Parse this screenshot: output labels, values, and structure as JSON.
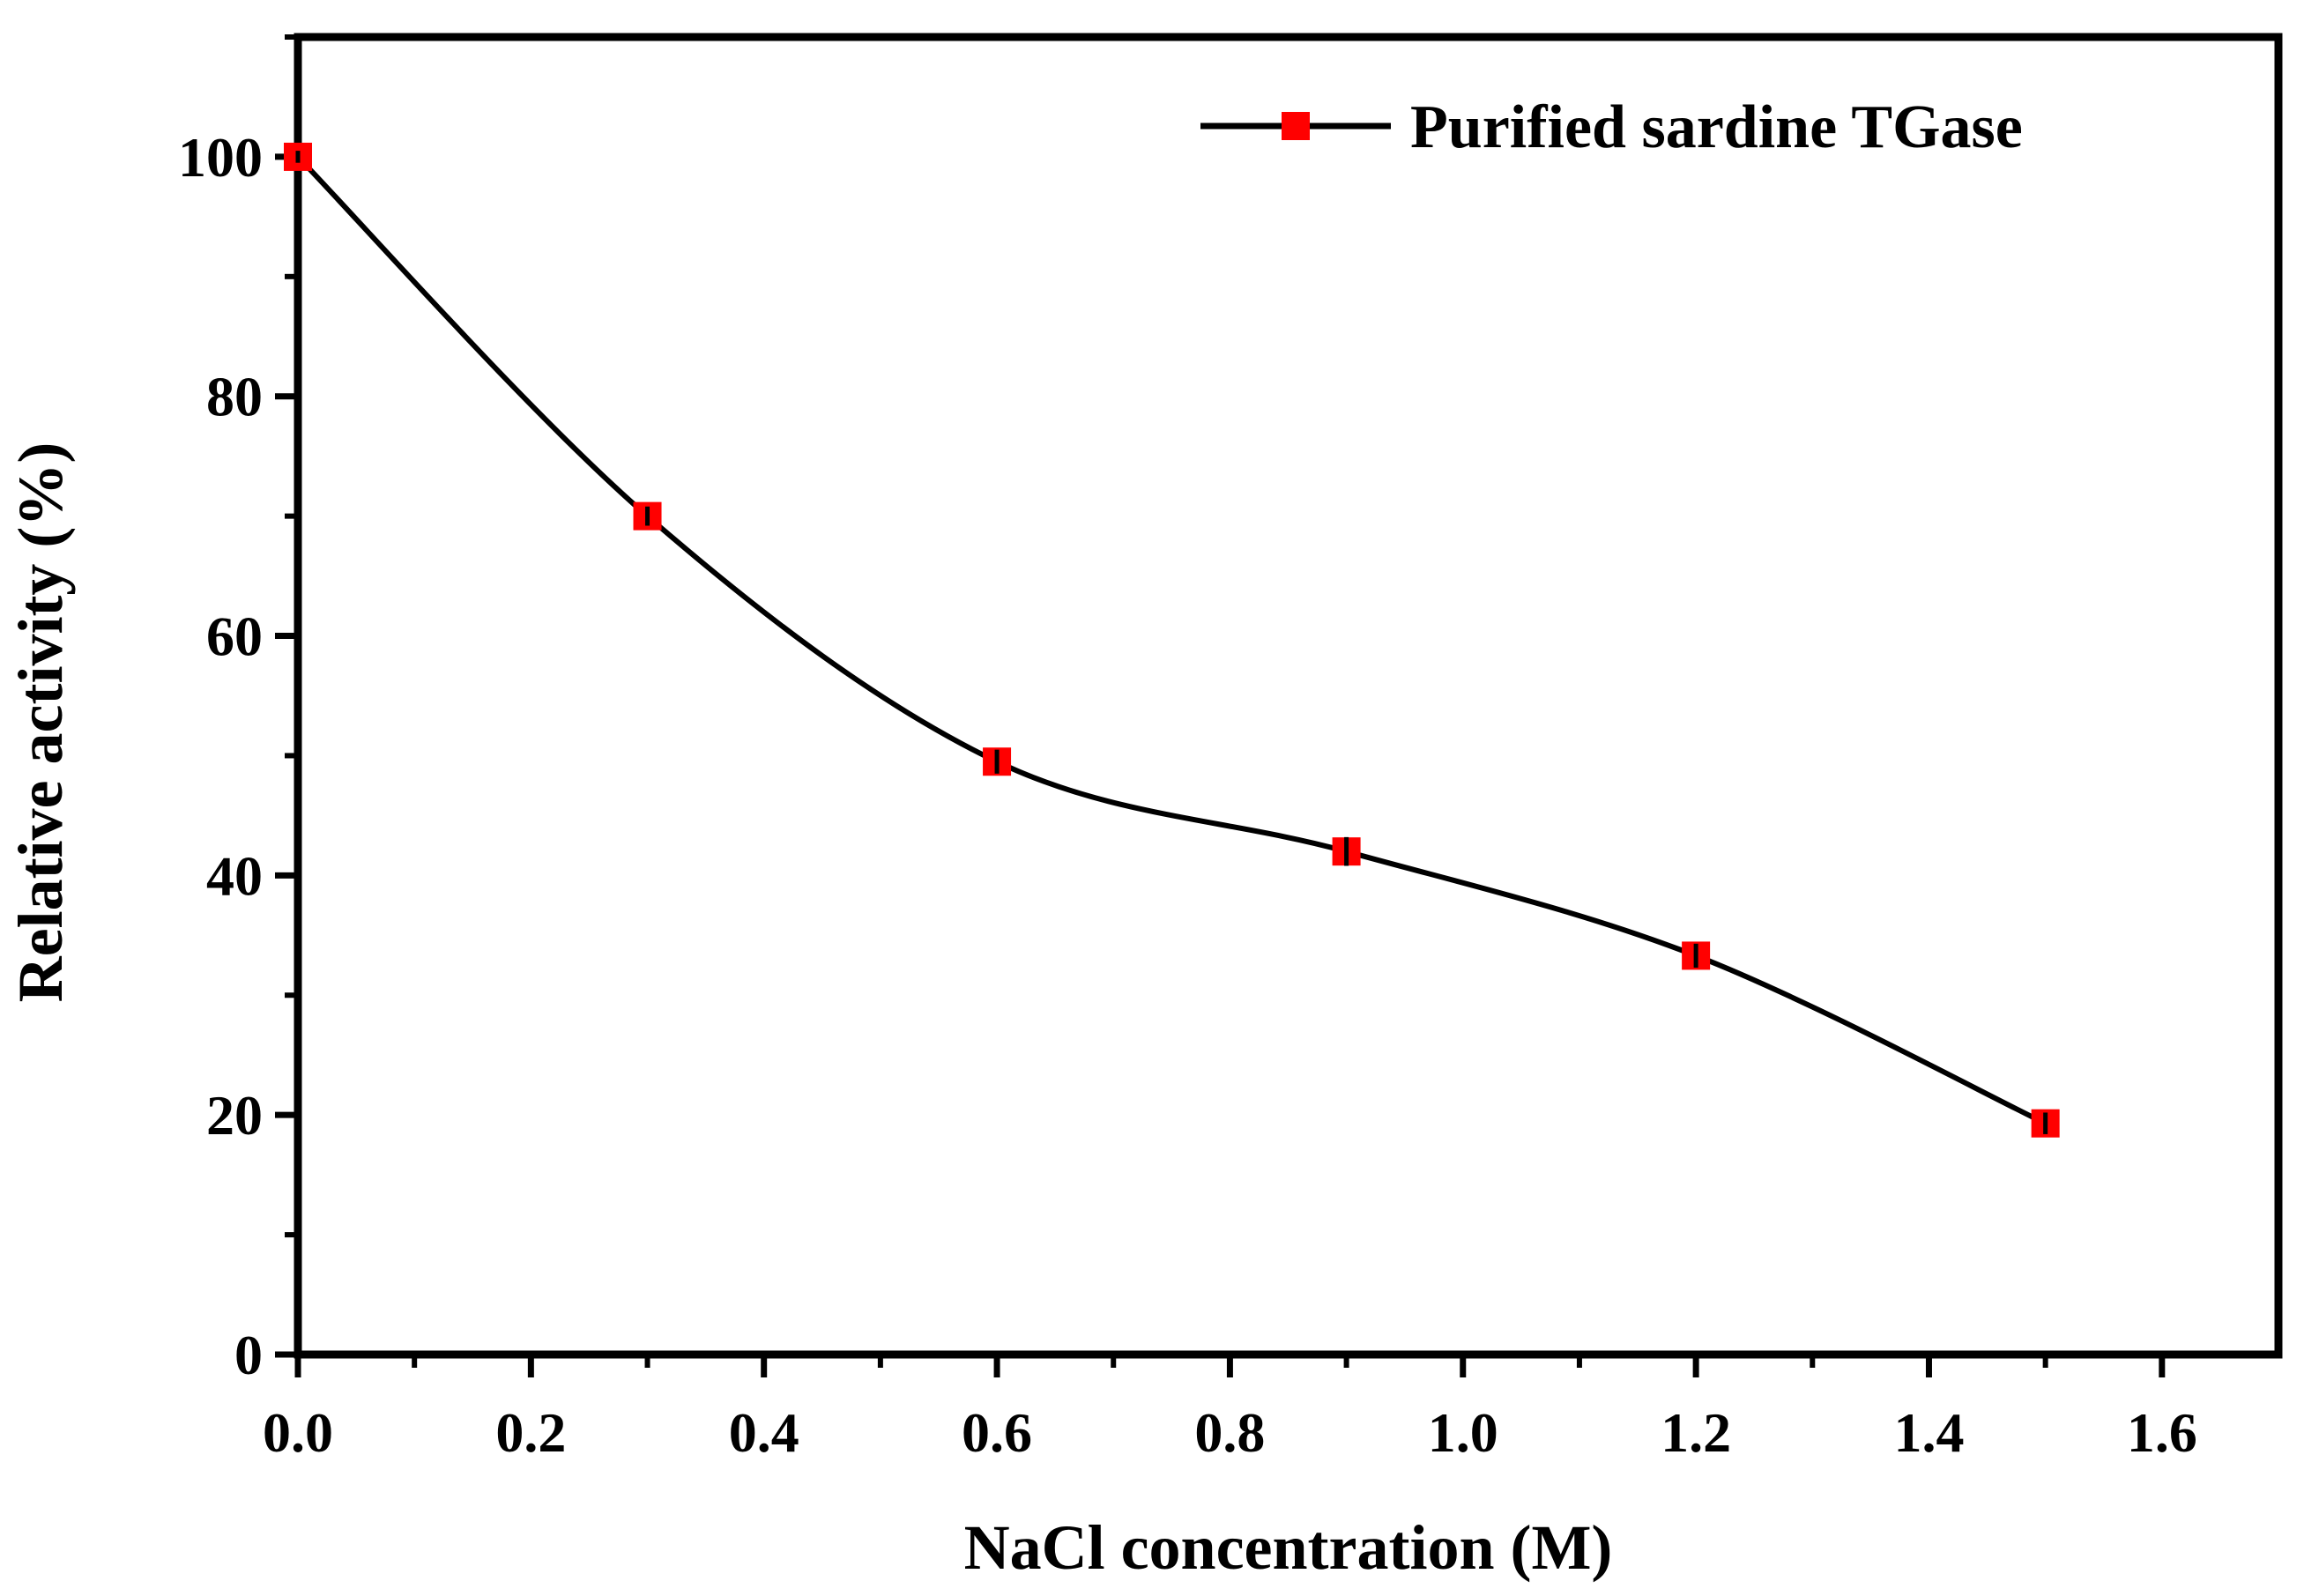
{
  "chart_data": {
    "type": "line",
    "title": "",
    "xlabel": "NaCl concentration (M)",
    "ylabel": "Relative activity (%)",
    "xlim": [
      0.0,
      1.7
    ],
    "ylim": [
      0,
      110
    ],
    "xticks": [
      0.0,
      0.2,
      0.4,
      0.6,
      0.8,
      1.0,
      1.2,
      1.4,
      1.6
    ],
    "xtick_labels": [
      "0.0",
      "0.2",
      "0.4",
      "0.6",
      "0.8",
      "1.0",
      "1.2",
      "1.4",
      "1.6"
    ],
    "yticks": [
      0,
      20,
      40,
      60,
      80,
      100
    ],
    "ytick_labels": [
      "0",
      "20",
      "40",
      "60",
      "80",
      "100"
    ],
    "grid": false,
    "legend_position": "top-right",
    "series": [
      {
        "name": "Purified sardine TGase",
        "x": [
          0.0,
          0.3,
          0.6,
          0.9,
          1.2,
          1.5
        ],
        "values": [
          100,
          70,
          49.5,
          42,
          33.3,
          19.3
        ],
        "error": [
          0.5,
          0.8,
          1.0,
          1.2,
          1.0,
          0.9
        ],
        "line_color": "#000000",
        "marker_color": "#ff0000",
        "marker": "square",
        "smooth": true
      }
    ]
  }
}
